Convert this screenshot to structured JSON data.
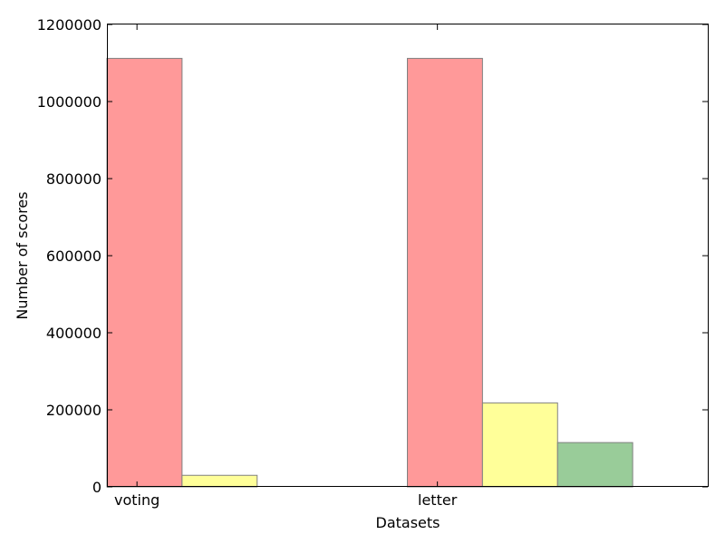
{
  "chart_data": {
    "type": "bar",
    "title": "",
    "xlabel": "Datasets",
    "ylabel": "Number of scores",
    "categories": [
      "voting",
      "letter"
    ],
    "series": [
      {
        "color": "#ff9999",
        "values": [
          1112000,
          1112000
        ]
      },
      {
        "color": "#ffff99",
        "values": [
          30000,
          218000
        ]
      },
      {
        "color": "#99cc99",
        "values": [
          0,
          115000
        ]
      }
    ],
    "ylim": [
      0,
      1200000
    ],
    "yticks": [
      0,
      200000,
      400000,
      600000,
      800000,
      1000000,
      1200000
    ],
    "ytick_labels": [
      "0",
      "200000",
      "400000",
      "600000",
      "800000",
      "1000000",
      "1200000"
    ],
    "grid": false,
    "legend": "none"
  }
}
